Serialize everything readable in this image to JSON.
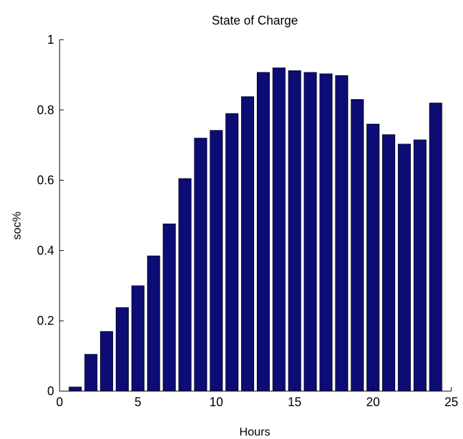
{
  "chart_data": {
    "type": "bar",
    "title": "State of Charge",
    "xlabel": "Hours",
    "ylabel": "soc%",
    "x": [
      1,
      2,
      3,
      4,
      5,
      6,
      7,
      8,
      9,
      10,
      11,
      12,
      13,
      14,
      15,
      16,
      17,
      18,
      19,
      20,
      21,
      22,
      23,
      24
    ],
    "values": [
      0.012,
      0.105,
      0.17,
      0.238,
      0.3,
      0.385,
      0.476,
      0.605,
      0.72,
      0.742,
      0.79,
      0.838,
      0.907,
      0.92,
      0.912,
      0.907,
      0.903,
      0.898,
      0.83,
      0.76,
      0.73,
      0.703,
      0.715,
      0.82
    ],
    "xlim": [
      0,
      25
    ],
    "ylim": [
      0,
      1
    ],
    "xticks": [
      0,
      5,
      10,
      15,
      20,
      25
    ],
    "yticks": [
      0,
      0.2,
      0.4,
      0.6,
      0.8,
      1
    ],
    "xtick_labels": [
      "0",
      "5",
      "10",
      "15",
      "20",
      "25"
    ],
    "ytick_labels": [
      "0",
      "0.2",
      "0.4",
      "0.6",
      "0.8",
      "1"
    ],
    "grid": false,
    "legend": "none",
    "bar_color": "#0c0c74"
  }
}
